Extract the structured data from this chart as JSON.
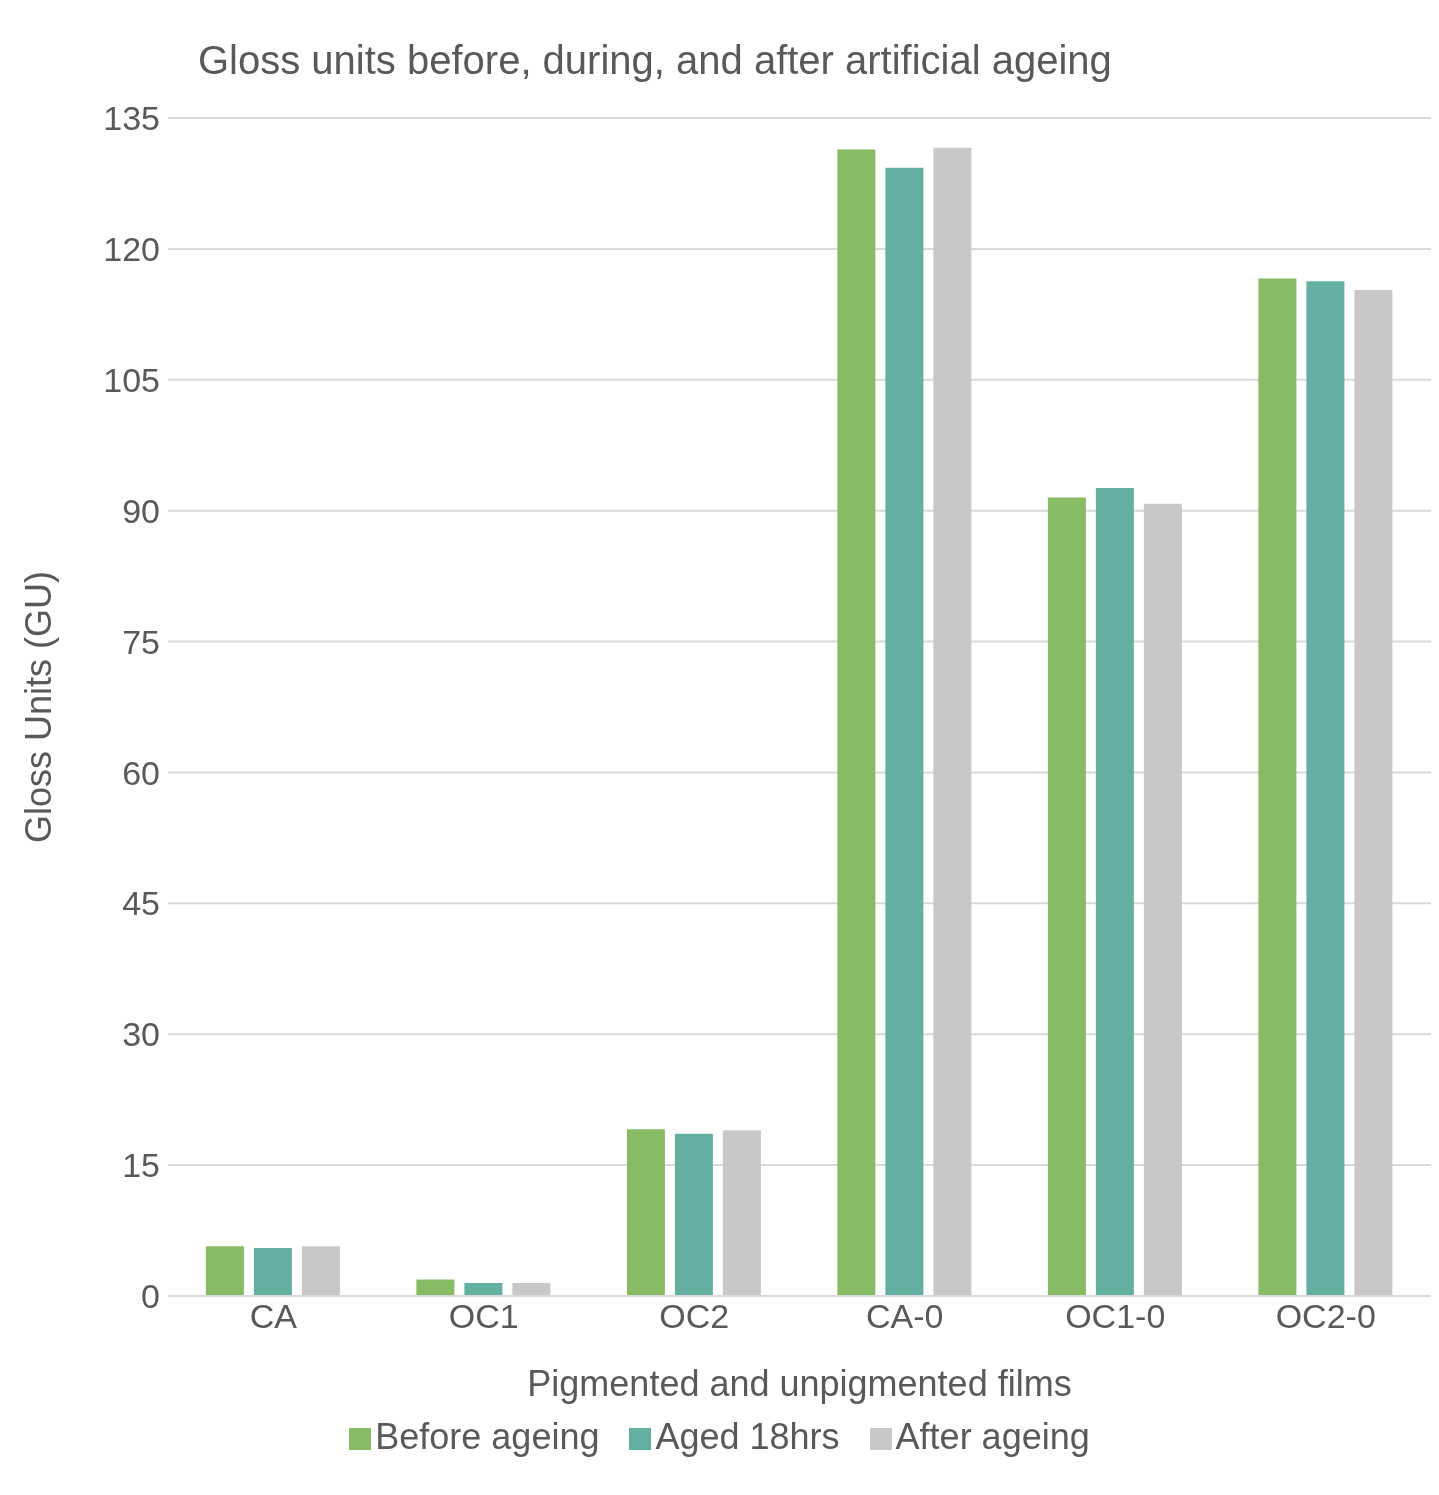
{
  "chart_data": {
    "type": "bar",
    "title": "Gloss units before, during, and after artificial ageing",
    "xlabel": "Pigmented and unpigmented films",
    "ylabel": "Gloss Units (GU)",
    "categories": [
      "CA",
      "OC1",
      "OC2",
      "CA-0",
      "OC1-0",
      "OC2-0"
    ],
    "series": [
      {
        "name": "Before ageing",
        "color": "#87bb64",
        "values": [
          5.7,
          1.9,
          19.1,
          131.4,
          91.5,
          116.6
        ]
      },
      {
        "name": "Aged 18hrs",
        "color": "#63b0a2",
        "values": [
          5.5,
          1.5,
          18.6,
          129.3,
          92.6,
          116.3
        ]
      },
      {
        "name": "After ageing",
        "color": "#c8c8c8",
        "values": [
          5.7,
          1.5,
          19.0,
          131.6,
          90.8,
          115.3
        ]
      }
    ],
    "ylim": [
      0,
      135
    ],
    "yticks": [
      0,
      15,
      30,
      45,
      60,
      75,
      90,
      105,
      120,
      135
    ],
    "grid": "y",
    "legend": "bottom"
  }
}
